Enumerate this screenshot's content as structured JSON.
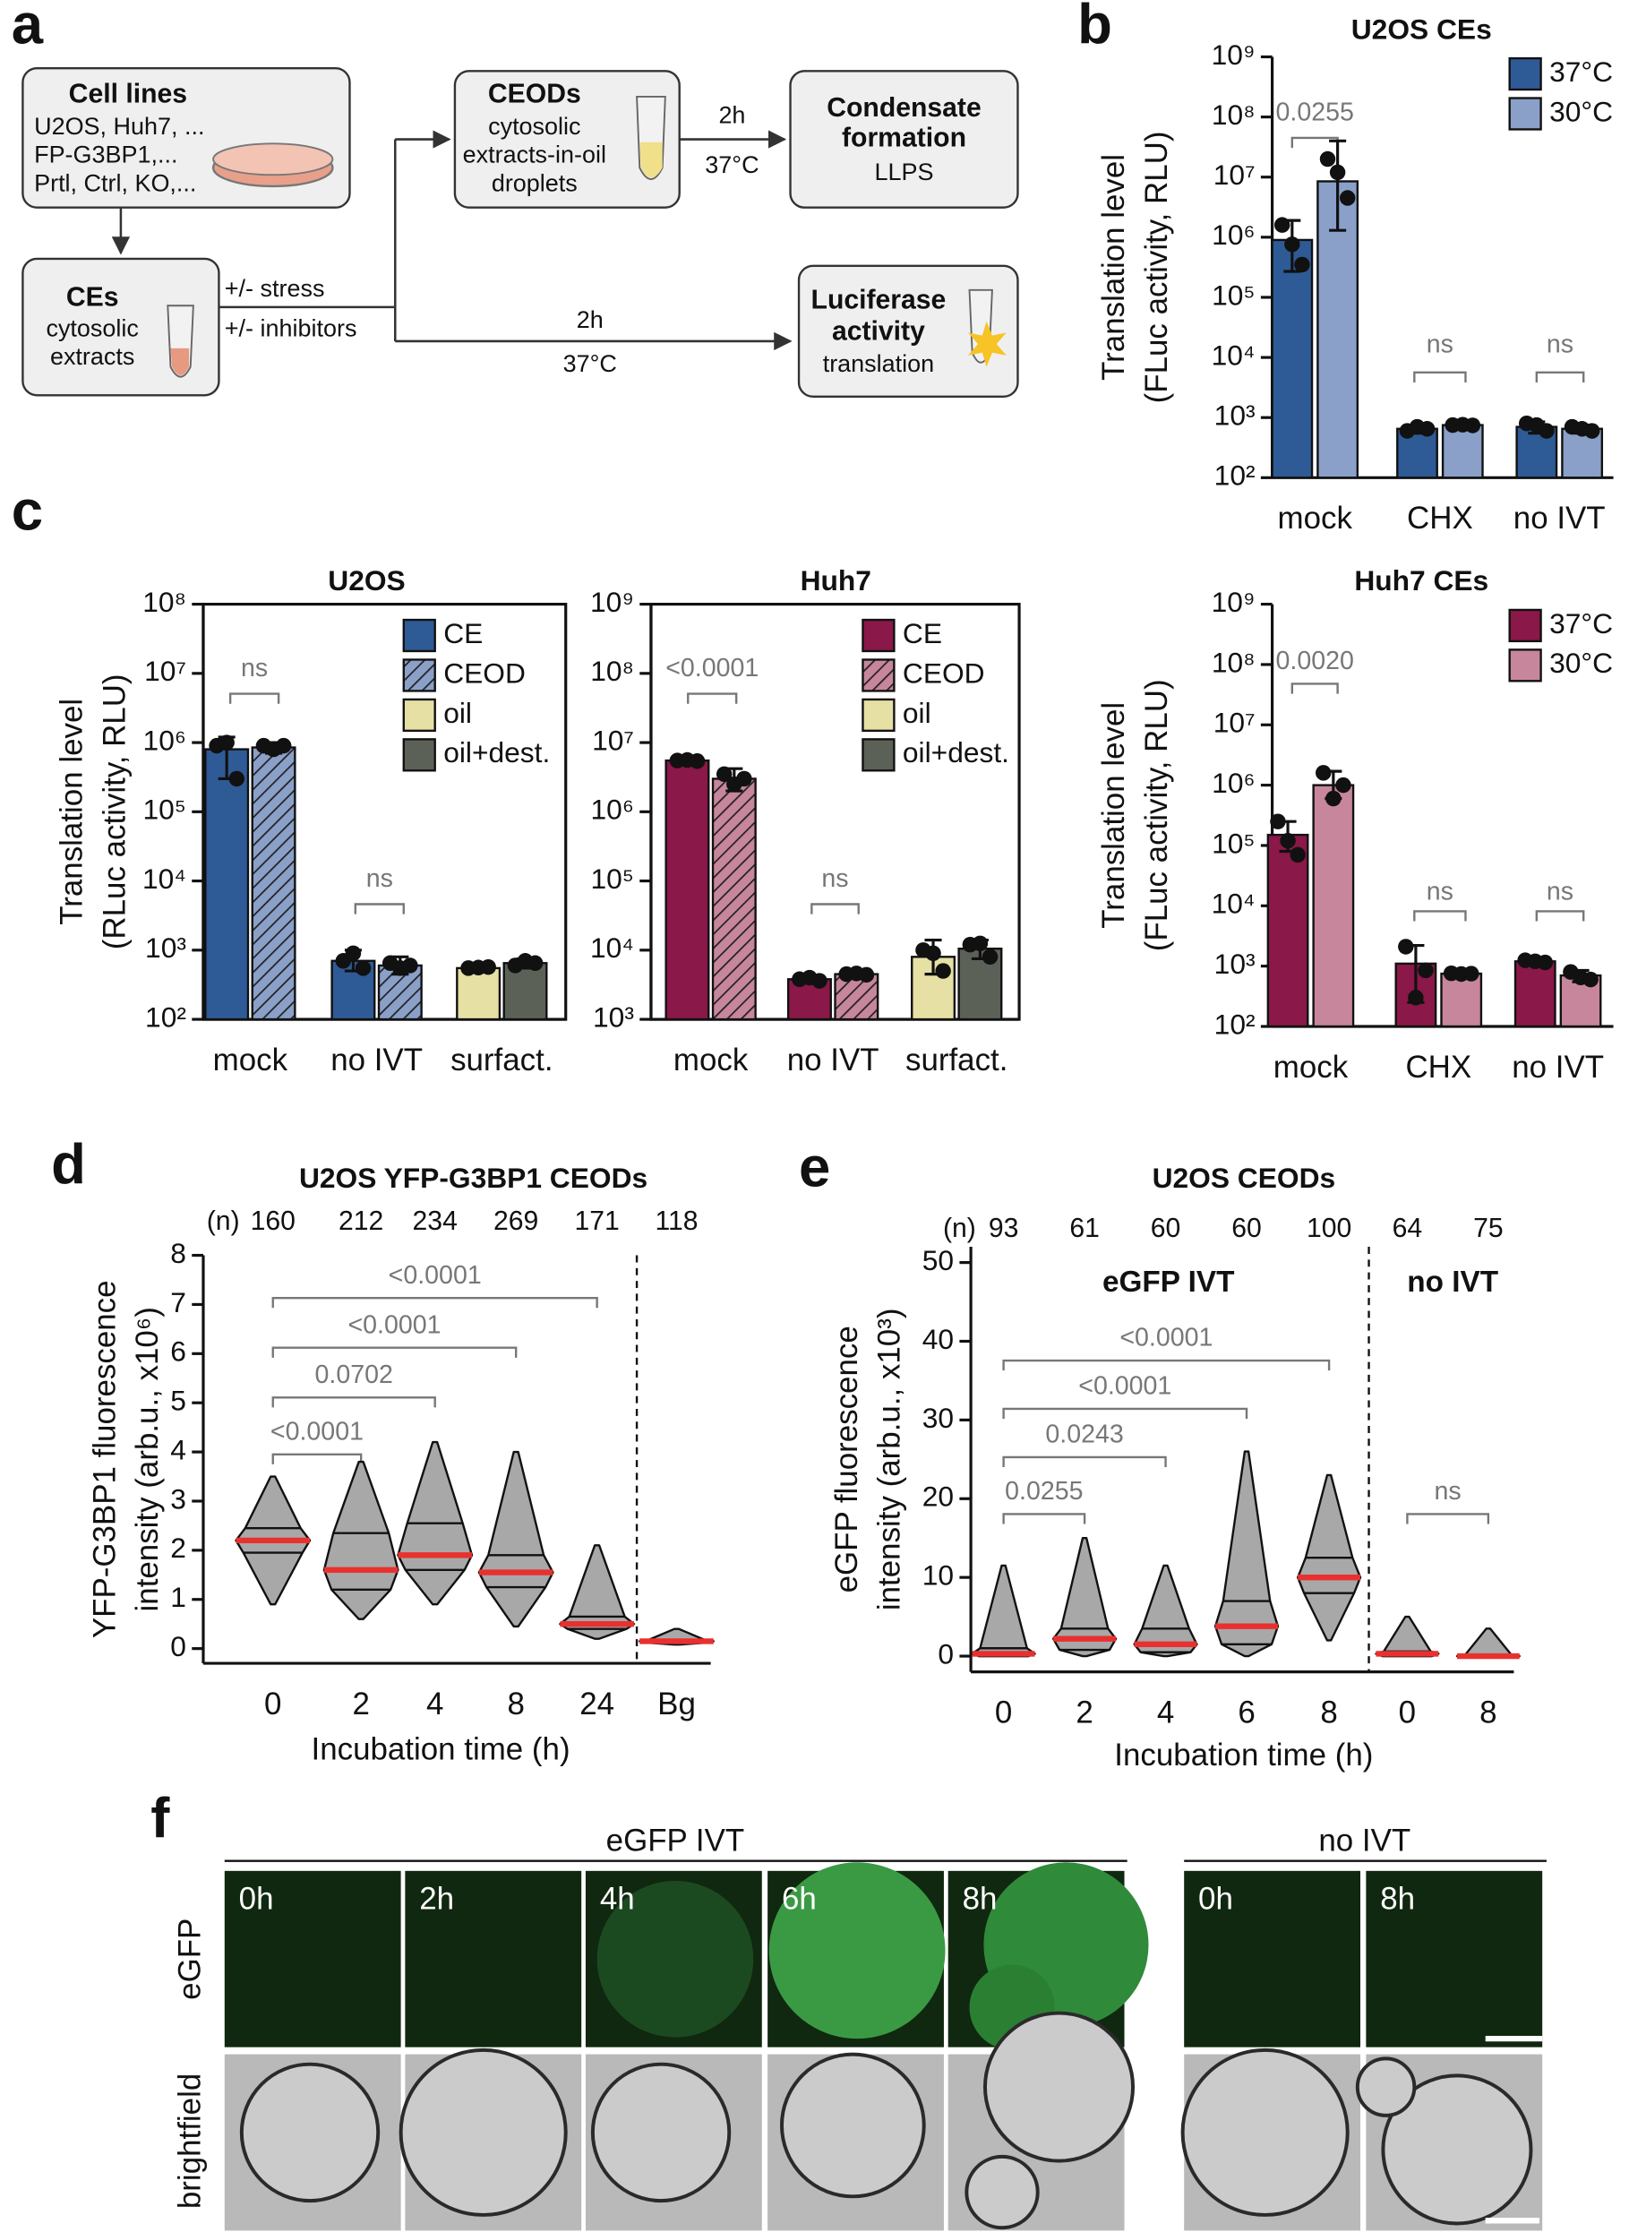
{
  "panel_labels": [
    "a",
    "b",
    "c",
    "d",
    "e",
    "f"
  ],
  "diagram": {
    "cell_lines": {
      "title": "Cell lines",
      "lines": [
        "U2OS, Huh7, ...",
        "FP-G3BP1,...",
        "Prtl, Ctrl, KO,..."
      ]
    },
    "ces": {
      "title": "CEs",
      "lines": [
        "cytosolic",
        "extracts"
      ]
    },
    "treatments": [
      "+/- stress",
      "+/- inhibitors"
    ],
    "ceods": {
      "title": "CEODs",
      "lines": [
        "cytosolic",
        "extracts-in-oil",
        "droplets"
      ]
    },
    "step_to_condensate": [
      "2h",
      "37°C"
    ],
    "condensate": {
      "title": [
        "Condensate",
        "formation"
      ],
      "lines": [
        "LLPS"
      ]
    },
    "step_to_luciferase": [
      "2h",
      "37°C"
    ],
    "luciferase": {
      "title": [
        "Luciferase",
        "activity"
      ],
      "lines": [
        "translation"
      ]
    }
  },
  "chart_data": [
    {
      "type": "bar",
      "title": "U2OS CEs",
      "ylabel": [
        "Translation level",
        "(FLuc activity, RLU)"
      ],
      "log_scale": true,
      "ylim": [
        100,
        1000000000.0
      ],
      "yticks": [
        {
          "value": 100,
          "label": "10²"
        },
        {
          "value": 1000,
          "label": "10³"
        },
        {
          "value": 10000,
          "label": "10⁴"
        },
        {
          "value": 100000,
          "label": "10⁵"
        },
        {
          "value": 1000000,
          "label": "10⁶"
        },
        {
          "value": 10000000,
          "label": "10⁷"
        },
        {
          "value": 100000000,
          "label": "10⁸"
        },
        {
          "value": 1000000000,
          "label": "10⁹"
        }
      ],
      "categories": [
        "mock",
        "CHX",
        "no IVT"
      ],
      "legend": "upper right",
      "series": [
        {
          "name": "37°C",
          "color": "#2e5b96",
          "values": [
            900000,
            650,
            700
          ],
          "errors": [
            [
              270000,
              1900000
            ],
            [
              550,
              750
            ],
            [
              550,
              850
            ]
          ],
          "points": [
            [
              1600000,
              760000,
              350000
            ],
            [
              600,
              700,
              650
            ],
            [
              800,
              750,
              600
            ]
          ]
        },
        {
          "name": "30°C",
          "color": "#8aa0c8",
          "values": [
            8500000,
            750,
            650
          ],
          "errors": [
            [
              1300000,
              40000000
            ],
            [
              700,
              800
            ],
            [
              550,
              750
            ]
          ],
          "points": [
            [
              20000000,
              12000000,
              4500000
            ],
            [
              750,
              760,
              740
            ],
            [
              700,
              650,
              600
            ]
          ]
        }
      ],
      "annotations": [
        "0.0255",
        "ns",
        "ns"
      ]
    },
    {
      "type": "bar",
      "title": "U2OS",
      "ylabel": [
        "Translation level",
        "(RLuc activity, RLU)"
      ],
      "log_scale": true,
      "ylim": [
        100,
        100000000.0
      ],
      "yticks": [
        {
          "value": 100,
          "label": "10²"
        },
        {
          "value": 1000,
          "label": "10³"
        },
        {
          "value": 10000,
          "label": "10⁴"
        },
        {
          "value": 100000,
          "label": "10⁵"
        },
        {
          "value": 1000000,
          "label": "10⁶"
        },
        {
          "value": 10000000,
          "label": "10⁷"
        },
        {
          "value": 100000000,
          "label": "10⁸"
        }
      ],
      "categories": [
        "mock",
        "no IVT",
        "surfact."
      ],
      "legend": "upper right",
      "series": [
        {
          "name": "CE",
          "color": "#2e5b96",
          "values": [
            800000,
            700,
            null
          ],
          "errors": [
            [
              300000,
              1200000
            ],
            [
              500,
              1000
            ],
            null
          ],
          "points": [
            [
              900000,
              1000000,
              300000
            ],
            [
              700,
              900,
              550
            ],
            null
          ]
        },
        {
          "name": "CEOD",
          "color": "#8aa0c8",
          "hatch": true,
          "values": [
            850000,
            600,
            null
          ],
          "errors": [
            [
              700000,
              1000000
            ],
            [
              450,
              800
            ],
            null
          ],
          "points": [
            [
              900000,
              800000,
              900000
            ],
            [
              650,
              550,
              600
            ],
            null
          ]
        },
        {
          "name": "oil",
          "color": "#e6e0a4",
          "values": [
            null,
            null,
            550
          ],
          "errors": [
            null,
            null,
            [
              500,
              600
            ]
          ],
          "points": [
            null,
            null,
            [
              550,
              560,
              570
            ]
          ]
        },
        {
          "name": "oil+dest.",
          "color": "#5c6157",
          "values": [
            null,
            null,
            650
          ],
          "errors": [
            null,
            null,
            [
              550,
              750
            ]
          ],
          "points": [
            null,
            null,
            [
              600,
              700,
              650
            ]
          ]
        }
      ],
      "annotations": [
        "ns",
        "ns"
      ]
    },
    {
      "type": "bar",
      "title": "Huh7",
      "log_scale": true,
      "ylim": [
        1000,
        1000000000.0
      ],
      "yticks": [
        {
          "value": 1000,
          "label": "10³"
        },
        {
          "value": 10000,
          "label": "10⁴"
        },
        {
          "value": 100000,
          "label": "10⁵"
        },
        {
          "value": 1000000,
          "label": "10⁶"
        },
        {
          "value": 10000000,
          "label": "10⁷"
        },
        {
          "value": 100000000,
          "label": "10⁸"
        },
        {
          "value": 1000000000,
          "label": "10⁹"
        }
      ],
      "categories": [
        "mock",
        "no IVT",
        "surfact."
      ],
      "legend": "upper right",
      "series": [
        {
          "name": "CE",
          "color": "#8a1848",
          "values": [
            5500000,
            3800,
            null
          ],
          "errors": [
            [
              5000000,
              6000000
            ],
            [
              3400,
              4200
            ],
            null
          ],
          "points": [
            [
              5500000,
              5600000,
              5400000
            ],
            [
              3800,
              4000,
              3600
            ],
            null
          ]
        },
        {
          "name": "CEOD",
          "color": "#c7869b",
          "hatch": true,
          "values": [
            3000000,
            4500,
            null
          ],
          "errors": [
            [
              2000000,
              4200000
            ],
            [
              4200,
              4800
            ],
            null
          ],
          "points": [
            [
              3500000,
              2500000,
              3000000
            ],
            [
              4500,
              4600,
              4400
            ],
            null
          ]
        },
        {
          "name": "oil",
          "color": "#e6e0a4",
          "values": [
            null,
            null,
            8000
          ],
          "errors": [
            null,
            null,
            [
              4500,
              14000
            ]
          ],
          "points": [
            null,
            null,
            [
              10000,
              9000,
              5000
            ]
          ]
        },
        {
          "name": "oil+dest.",
          "color": "#5c6157",
          "values": [
            null,
            null,
            10500
          ],
          "errors": [
            null,
            null,
            [
              7500,
              14000
            ]
          ],
          "points": [
            null,
            null,
            [
              12000,
              12500,
              8000
            ]
          ]
        }
      ],
      "annotations": [
        "<0.0001",
        "ns"
      ]
    },
    {
      "type": "bar",
      "title": "Huh7 CEs",
      "ylabel": [
        "Translation level",
        "(FLuc activity, RLU)"
      ],
      "log_scale": true,
      "ylim": [
        100,
        1000000000.0
      ],
      "yticks": [
        {
          "value": 100,
          "label": "10²"
        },
        {
          "value": 1000,
          "label": "10³"
        },
        {
          "value": 10000,
          "label": "10⁴"
        },
        {
          "value": 100000,
          "label": "10⁵"
        },
        {
          "value": 1000000,
          "label": "10⁶"
        },
        {
          "value": 10000000,
          "label": "10⁷"
        },
        {
          "value": 100000000,
          "label": "10⁸"
        },
        {
          "value": 1000000000,
          "label": "10⁹"
        }
      ],
      "categories": [
        "mock",
        "CHX",
        "no IVT"
      ],
      "legend": "upper right",
      "series": [
        {
          "name": "37°C",
          "color": "#8a1848",
          "values": [
            150000,
            1100,
            1200
          ],
          "errors": [
            [
              80000,
              250000
            ],
            [
              250,
              2200
            ],
            [
              1050,
              1350
            ]
          ],
          "points": [
            [
              250000,
              120000,
              70000
            ],
            [
              2100,
              300,
              850
            ],
            [
              1250,
              1200,
              1150
            ]
          ]
        },
        {
          "name": "30°C",
          "color": "#c7869b",
          "values": [
            1000000,
            750,
            700
          ],
          "errors": [
            [
              600000,
              1700000
            ],
            [
              700,
              800
            ],
            [
              550,
              850
            ]
          ],
          "points": [
            [
              1600000,
              600000,
              1000000
            ],
            [
              760,
              740,
              750
            ],
            [
              800,
              650,
              600
            ]
          ]
        }
      ],
      "annotations": [
        "0.0020",
        "ns",
        "ns"
      ]
    },
    {
      "type": "violin",
      "title": "U2OS YFP-G3BP1 CEODs",
      "ylabel": [
        "YFP-G3BP1 fluorescence",
        "intensity (arb.u., x10⁶)"
      ],
      "xlabel": "Incubation time (h)",
      "ylim": [
        -0.3,
        8
      ],
      "yticks": [
        0,
        1,
        2,
        3,
        4,
        5,
        6,
        7,
        8
      ],
      "categories": [
        "0",
        "2",
        "4",
        "8",
        "24",
        "Bg"
      ],
      "n_label": "(n)",
      "n": [
        160,
        212,
        234,
        269,
        171,
        118
      ],
      "color": "#a8a8a8",
      "median_color": "#e8312f",
      "min": [
        0.9,
        0.6,
        0.9,
        0.45,
        0.2,
        0.08
      ],
      "q1": [
        1.95,
        1.2,
        1.6,
        1.25,
        0.4,
        0.12
      ],
      "medians": [
        2.2,
        1.6,
        1.9,
        1.55,
        0.5,
        0.15
      ],
      "q3": [
        2.45,
        2.35,
        2.55,
        1.9,
        0.65,
        0.18
      ],
      "max": [
        3.5,
        3.8,
        4.2,
        4.0,
        2.1,
        0.4
      ],
      "annotations": [
        "<0.0001",
        "0.0702",
        "<0.0001",
        "<0.0001"
      ]
    },
    {
      "type": "violin",
      "title": "U2OS CEODs",
      "ylabel": [
        "eGFP fluorescence",
        "intensity (arb.u., x10³)"
      ],
      "xlabel": "Incubation time (h)",
      "ylim": [
        -2,
        52
      ],
      "yticks": [
        0,
        10,
        20,
        30,
        40,
        50
      ],
      "categories": [
        "0",
        "2",
        "4",
        "6",
        "8",
        "0",
        "8"
      ],
      "groups": [
        "eGFP IVT",
        "no IVT"
      ],
      "n_label": "(n)",
      "n": [
        93,
        61,
        60,
        60,
        100,
        64,
        75
      ],
      "color": "#a8a8a8",
      "median_color": "#e8312f",
      "min": [
        0,
        0,
        0,
        0,
        2,
        0,
        0
      ],
      "q1": [
        0,
        0.8,
        0.5,
        1.5,
        8,
        0,
        0
      ],
      "medians": [
        0.3,
        2.2,
        1.5,
        3.8,
        10,
        0.3,
        0
      ],
      "q3": [
        1,
        3.5,
        3.5,
        7,
        12.5,
        0.6,
        0.1
      ],
      "max": [
        11.5,
        15,
        11.5,
        26,
        23,
        5,
        3.5
      ],
      "annotations": [
        "0.0255",
        "0.0243",
        "<0.0001",
        "<0.0001",
        "ns"
      ]
    }
  ],
  "micrographs": {
    "groups": [
      "eGFP IVT",
      "no IVT"
    ],
    "rows": [
      "eGFP",
      "brightfield"
    ],
    "timepoints": [
      "0h",
      "2h",
      "4h",
      "6h",
      "8h",
      "0h",
      "8h"
    ]
  }
}
